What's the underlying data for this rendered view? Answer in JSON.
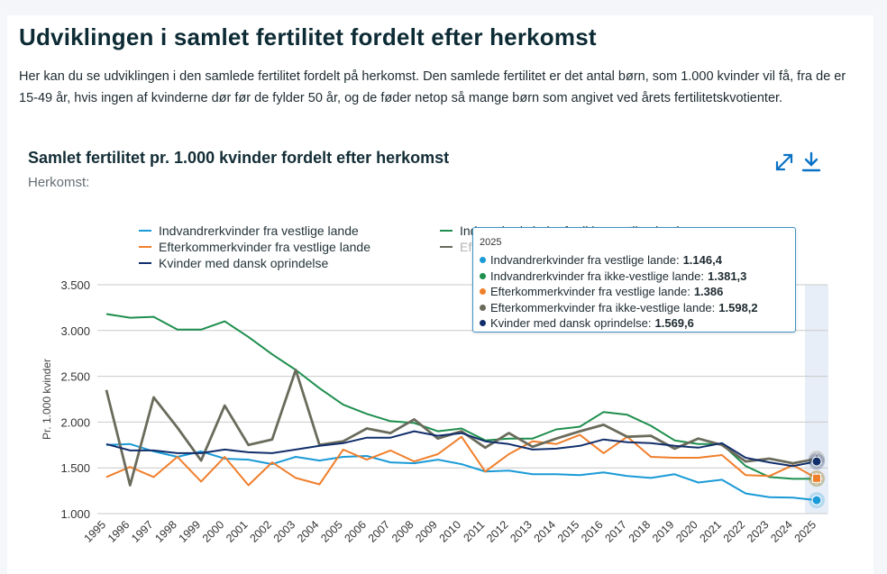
{
  "page": {
    "title": "Udviklingen i samlet fertilitet fordelt efter herkomst",
    "intro": "Her kan du se udviklingen i den samlede fertilitet fordelt på herkomst. Den samlede fertilitet er det antal børn, som 1.000 kvinder vil få, fra de er 15-49 år, hvis ingen af kvinderne dør før de fylder 50 år, og de føder netop så mange børn som angivet ved årets fertilitetskvotienter."
  },
  "chart_header": {
    "title": "Samlet fertilitet pr. 1.000 kvinder fordelt efter herkomst",
    "filter_label": "Herkomst:",
    "expand_icon": "expand-icon",
    "download_icon": "download-icon"
  },
  "tooltip": {
    "year": "2025",
    "rows": [
      {
        "label": "Indvandrerkvinder fra vestlige lande:",
        "value": "1.146,4",
        "color": "#1a9ad6"
      },
      {
        "label": "Indvandrerkvinder fra ikke-vestlige lande:",
        "value": "1.381,3",
        "color": "#1e8f4e"
      },
      {
        "label": "Efterkommerkvinder fra vestlige lande:",
        "value": "1.386",
        "color": "#f07f2c"
      },
      {
        "label": "Efterkommerkvinder fra ikke-vestlige lande:",
        "value": "1.598,2",
        "color": "#6b6b5c"
      },
      {
        "label": "Kvinder med dansk oprindelse:",
        "value": "1.569,6",
        "color": "#112e6b"
      }
    ]
  },
  "chart_data": {
    "type": "line",
    "ylabel": "Pr. 1.000 kvinder",
    "ylim": [
      1000,
      3500
    ],
    "yticks": [
      1000,
      1500,
      2000,
      2500,
      3000,
      3500
    ],
    "ytick_labels": [
      "1.000",
      "1.500",
      "2.000",
      "2.500",
      "3.000",
      "3.500"
    ],
    "grid": true,
    "highlight_x": "2025",
    "legend_position": "top",
    "x": [
      "1995",
      "1996",
      "1997",
      "1998",
      "1999",
      "2000",
      "2001",
      "2002",
      "2003",
      "2004",
      "2005",
      "2006",
      "2007",
      "2008",
      "2009",
      "2010",
      "2011",
      "2012",
      "2013",
      "2014",
      "2015",
      "2016",
      "2017",
      "2018",
      "2019",
      "2020",
      "2021",
      "2022",
      "2023",
      "2024",
      "2025"
    ],
    "series": [
      {
        "name": "Indvandrerkvinder fra vestlige lande",
        "color": "#1a9ad6",
        "values": [
          1750,
          1760,
          1680,
          1620,
          1680,
          1600,
          1590,
          1540,
          1620,
          1580,
          1620,
          1630,
          1560,
          1550,
          1590,
          1540,
          1460,
          1470,
          1430,
          1430,
          1420,
          1450,
          1410,
          1390,
          1430,
          1340,
          1370,
          1220,
          1180,
          1175,
          1146.4
        ]
      },
      {
        "name": "Indvandrerkvinder fra ikke-vestlige lande",
        "color": "#1e8f4e",
        "values": [
          3180,
          3140,
          3150,
          3010,
          3010,
          3100,
          2930,
          2740,
          2570,
          2370,
          2190,
          2090,
          2010,
          1990,
          1900,
          1930,
          1800,
          1820,
          1820,
          1920,
          1950,
          2110,
          2080,
          1960,
          1800,
          1760,
          1760,
          1520,
          1400,
          1380,
          1381.3
        ]
      },
      {
        "name": "Efterkommerkvinder fra vestlige lande",
        "color": "#f07f2c",
        "values": [
          1400,
          1510,
          1400,
          1620,
          1350,
          1620,
          1310,
          1560,
          1390,
          1320,
          1700,
          1590,
          1690,
          1570,
          1650,
          1840,
          1460,
          1650,
          1790,
          1760,
          1860,
          1660,
          1840,
          1620,
          1610,
          1610,
          1640,
          1420,
          1410,
          1530,
          1386
        ]
      },
      {
        "name": "Efterkommerkvinder fra ikke-vestlige lande",
        "color": "#6b6b5c",
        "values": [
          2350,
          1310,
          2270,
          1940,
          1580,
          2180,
          1750,
          1810,
          2570,
          1750,
          1790,
          1930,
          1880,
          2030,
          1820,
          1900,
          1720,
          1880,
          1730,
          1820,
          1900,
          1970,
          1840,
          1850,
          1710,
          1820,
          1750,
          1570,
          1600,
          1550,
          1598.2
        ]
      },
      {
        "name": "Kvinder med dansk oprindelse",
        "color": "#112e6b",
        "values": [
          1760,
          1690,
          1690,
          1660,
          1660,
          1700,
          1670,
          1660,
          1700,
          1740,
          1770,
          1830,
          1830,
          1900,
          1850,
          1880,
          1790,
          1760,
          1700,
          1710,
          1740,
          1810,
          1780,
          1770,
          1740,
          1720,
          1770,
          1610,
          1560,
          1520,
          1569.6
        ]
      }
    ]
  }
}
